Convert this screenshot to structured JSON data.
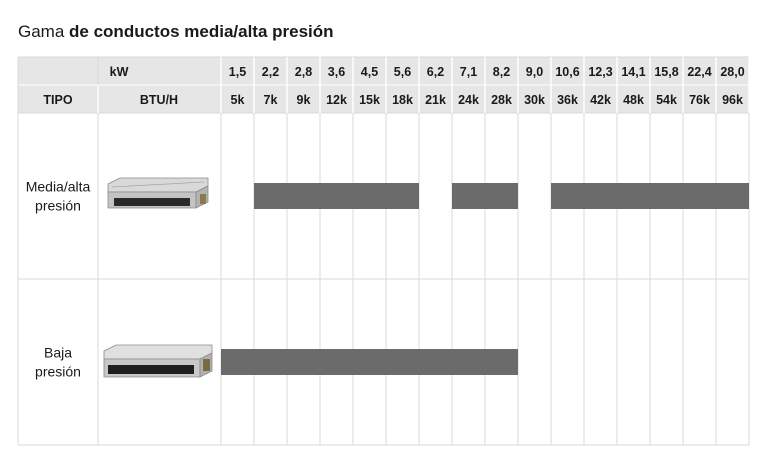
{
  "title": {
    "prefix": "Gama ",
    "bold": "de conductos media/alta presión"
  },
  "chart_data": {
    "type": "table",
    "header": {
      "kw_label": "kW",
      "tipo_label": "TIPO",
      "btu_label": "BTU/H"
    },
    "kw": [
      "1,5",
      "2,2",
      "2,8",
      "3,6",
      "4,5",
      "5,6",
      "6,2",
      "7,1",
      "8,2",
      "9,0",
      "10,6",
      "12,3",
      "14,1",
      "15,8",
      "22,4",
      "28,0"
    ],
    "btu": [
      "5k",
      "7k",
      "9k",
      "12k",
      "15k",
      "18k",
      "21k",
      "24k",
      "28k",
      "30k",
      "36k",
      "42k",
      "48k",
      "54k",
      "76k",
      "96k"
    ],
    "rows": [
      {
        "label_lines": [
          "Media/alta",
          "presión"
        ],
        "image_icon": "ducted-unit-icon",
        "available": [
          "7k",
          "9k",
          "12k",
          "15k",
          "18k",
          "24k",
          "28k",
          "36k",
          "42k",
          "48k",
          "54k",
          "76k",
          "96k"
        ]
      },
      {
        "label_lines": [
          "Baja",
          "presión"
        ],
        "image_icon": "ducted-unit-low-icon",
        "available": [
          "5k",
          "7k",
          "9k",
          "12k",
          "15k",
          "18k",
          "21k",
          "24k",
          "28k"
        ]
      }
    ],
    "colors": {
      "header_bg": "#e6e6e6",
      "bar": "#6b6b6b",
      "grid": "#d8d8d8"
    }
  }
}
